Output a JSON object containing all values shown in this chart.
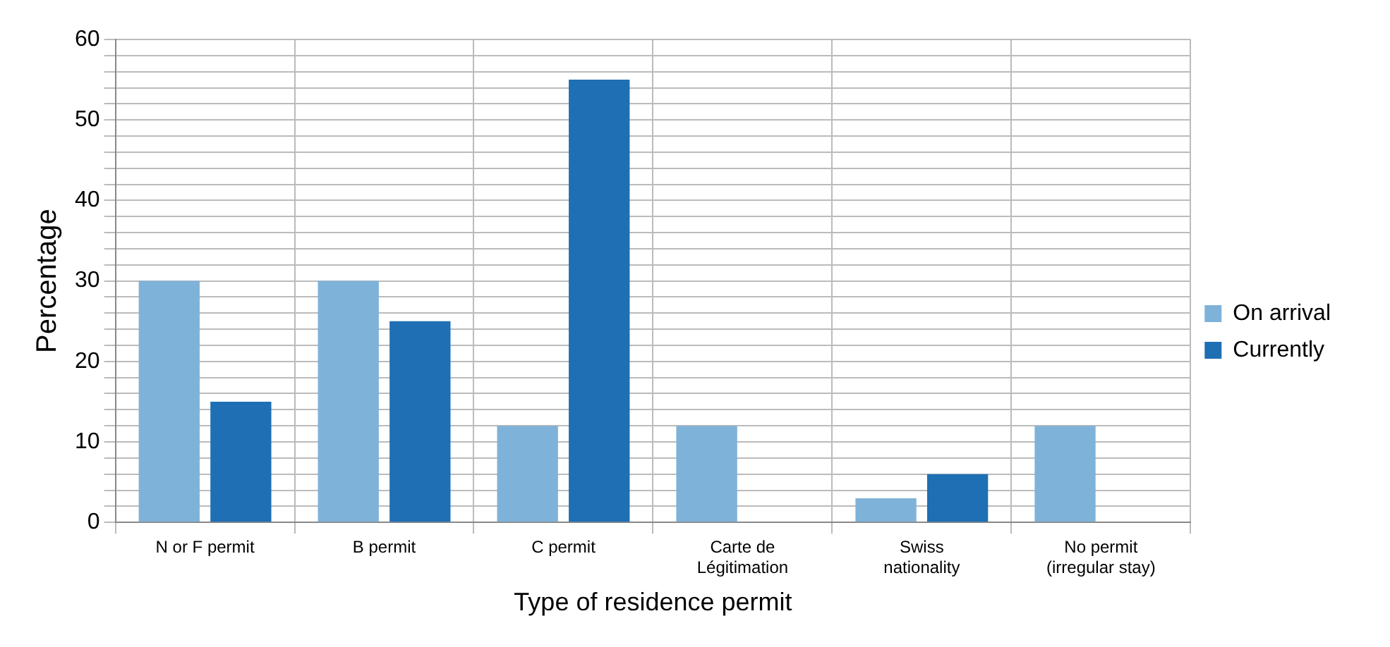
{
  "chart_data": {
    "type": "bar",
    "xlabel": "Type of residence permit",
    "ylabel": "Percentage",
    "categories": [
      "N or F permit",
      "B permit",
      "C permit",
      "Carte de Légitimation",
      "Swiss nationality",
      "No permit (irregular stay)"
    ],
    "series": [
      {
        "name": "On arrival",
        "color": "#7fb2d9",
        "values": [
          30,
          30,
          12,
          12,
          3,
          12
        ]
      },
      {
        "name": "Currently",
        "color": "#1f6fb4",
        "values": [
          15,
          25,
          55,
          0,
          6,
          0
        ]
      }
    ],
    "ylim": [
      0,
      60
    ],
    "yticks": [
      0,
      {
        "value": 2,
        "label": null
      },
      {
        "value": 4,
        "label": null
      },
      {
        "value": 6,
        "label": null
      },
      {
        "value": 8,
        "label": null
      },
      10,
      {
        "value": 12,
        "label": null
      },
      {
        "value": 14,
        "label": null
      },
      {
        "value": 16,
        "label": null
      },
      {
        "value": 18,
        "label": null
      },
      20,
      {
        "value": 22,
        "label": null
      },
      {
        "value": 24,
        "label": null
      },
      {
        "value": 26,
        "label": null
      },
      {
        "value": 28,
        "label": null
      },
      30,
      {
        "value": 32,
        "label": null
      },
      {
        "value": 34,
        "label": null
      },
      {
        "value": 36,
        "label": null
      },
      {
        "value": 38,
        "label": null
      },
      40,
      {
        "value": 42,
        "label": null
      },
      {
        "value": 44,
        "label": null
      },
      {
        "value": 46,
        "label": null
      },
      {
        "value": 48,
        "label": null
      },
      50,
      {
        "value": 52,
        "label": null
      },
      {
        "value": 54,
        "label": null
      },
      {
        "value": 56,
        "label": null
      },
      {
        "value": 58,
        "label": null
      },
      60
    ],
    "grid": true,
    "legend": "right"
  }
}
